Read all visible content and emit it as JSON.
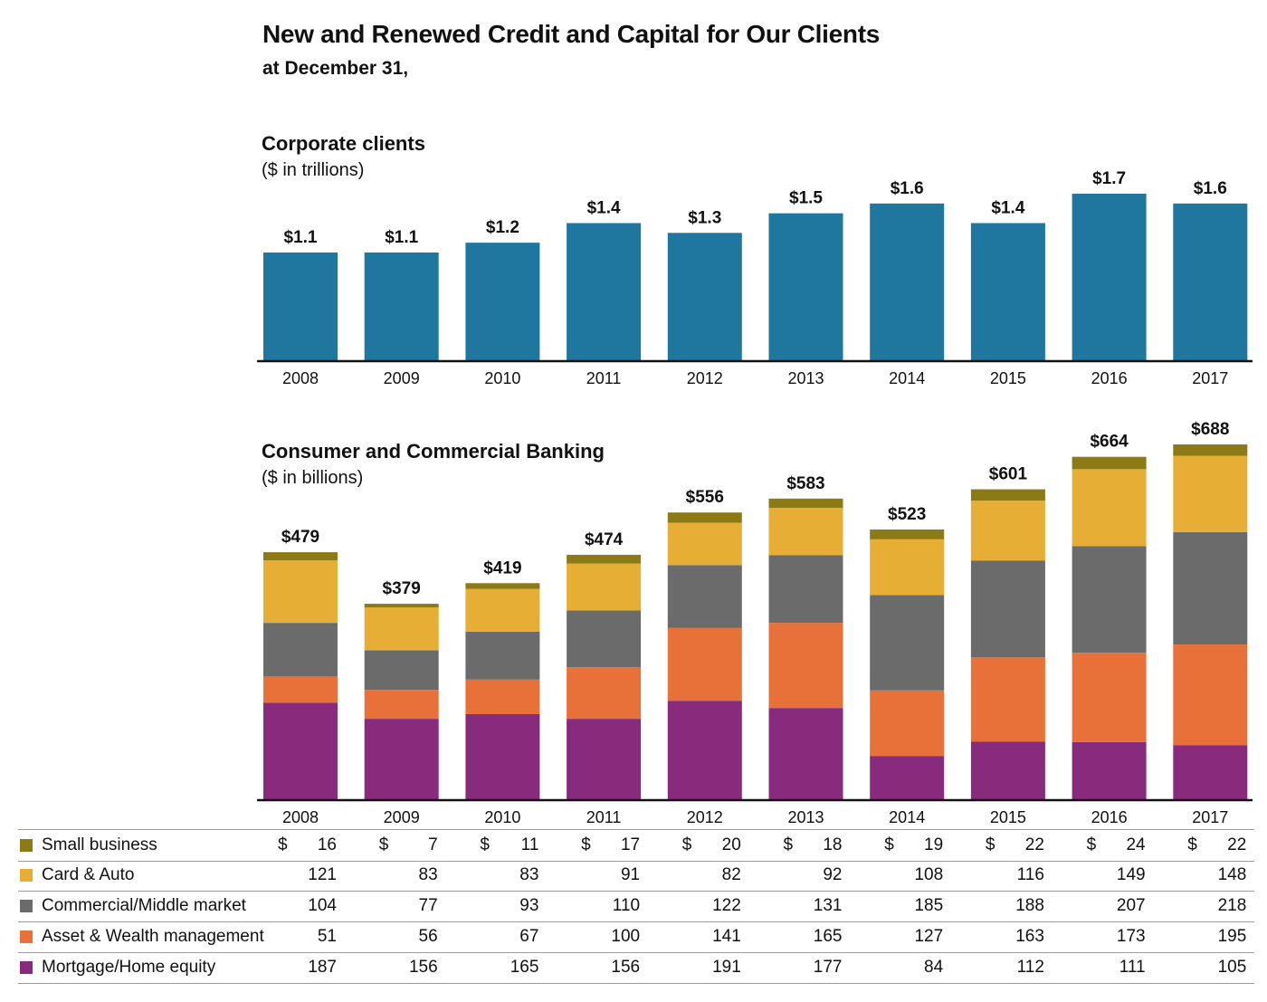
{
  "title": "New and Renewed Credit and Capital for Our Clients",
  "subtitle": "at December 31,",
  "colors": {
    "corporate_bar": "#1f77a0",
    "small_business": "#8c7a16",
    "card_auto": "#e6ae35",
    "commercial_middle": "#6b6b6b",
    "asset_wealth": "#e8713a",
    "mortgage_home": "#892b7c"
  },
  "chart_data": [
    {
      "type": "bar",
      "title": "Corporate clients",
      "ylabel": "($ in trillions)",
      "categories": [
        "2008",
        "2009",
        "2010",
        "2011",
        "2012",
        "2013",
        "2014",
        "2015",
        "2016",
        "2017"
      ],
      "values": [
        1.1,
        1.1,
        1.2,
        1.4,
        1.3,
        1.5,
        1.6,
        1.4,
        1.7,
        1.6
      ],
      "data_labels": [
        "$1.1",
        "$1.1",
        "$1.2",
        "$1.4",
        "$1.3",
        "$1.5",
        "$1.6",
        "$1.4",
        "$1.7",
        "$1.6"
      ],
      "ylim": [
        0,
        1.7
      ],
      "grid": false
    },
    {
      "type": "bar",
      "stacked": true,
      "title": "Consumer and Commercial Banking",
      "ylabel": "($ in billions)",
      "categories": [
        "2008",
        "2009",
        "2010",
        "2011",
        "2012",
        "2013",
        "2014",
        "2015",
        "2016",
        "2017"
      ],
      "totals": [
        "$479",
        "$379",
        "$419",
        "$474",
        "$556",
        "$583",
        "$523",
        "$601",
        "$664",
        "$688"
      ],
      "ylim": [
        0,
        688
      ],
      "grid": false,
      "series": [
        {
          "name": "Mortgage/Home equity",
          "color_key": "mortgage_home",
          "values": [
            187,
            156,
            165,
            156,
            191,
            177,
            84,
            112,
            111,
            105
          ]
        },
        {
          "name": "Asset & Wealth management",
          "color_key": "asset_wealth",
          "values": [
            51,
            56,
            67,
            100,
            141,
            165,
            127,
            163,
            173,
            195
          ]
        },
        {
          "name": "Commercial/Middle market",
          "color_key": "commercial_middle",
          "values": [
            104,
            77,
            93,
            110,
            122,
            131,
            185,
            188,
            207,
            218
          ]
        },
        {
          "name": "Card & Auto",
          "color_key": "card_auto",
          "values": [
            121,
            83,
            83,
            91,
            82,
            92,
            108,
            116,
            149,
            148
          ]
        },
        {
          "name": "Small business",
          "color_key": "small_business",
          "values": [
            16,
            7,
            11,
            17,
            20,
            18,
            19,
            22,
            24,
            22
          ]
        }
      ],
      "table_rows": [
        {
          "name": "Small business",
          "color_key": "small_business",
          "currency": "$",
          "cells": [
            "16",
            "7",
            "11",
            "17",
            "20",
            "18",
            "19",
            "22",
            "24",
            "22"
          ]
        },
        {
          "name": "Card & Auto",
          "color_key": "card_auto",
          "currency": "",
          "cells": [
            "121",
            "83",
            "83",
            "91",
            "82",
            "92",
            "108",
            "116",
            "149",
            "148"
          ]
        },
        {
          "name": "Commercial/Middle market",
          "color_key": "commercial_middle",
          "currency": "",
          "cells": [
            "104",
            "77",
            "93",
            "110",
            "122",
            "131",
            "185",
            "188",
            "207",
            "218"
          ]
        },
        {
          "name": "Asset & Wealth management",
          "color_key": "asset_wealth",
          "currency": "",
          "cells": [
            "51",
            "56",
            "67",
            "100",
            "141",
            "165",
            "127",
            "163",
            "173",
            "195"
          ]
        },
        {
          "name": "Mortgage/Home equity",
          "color_key": "mortgage_home",
          "currency": "",
          "cells": [
            "187",
            "156",
            "165",
            "156",
            "191",
            "177",
            "84",
            "112",
            "111",
            "105"
          ]
        }
      ]
    }
  ]
}
